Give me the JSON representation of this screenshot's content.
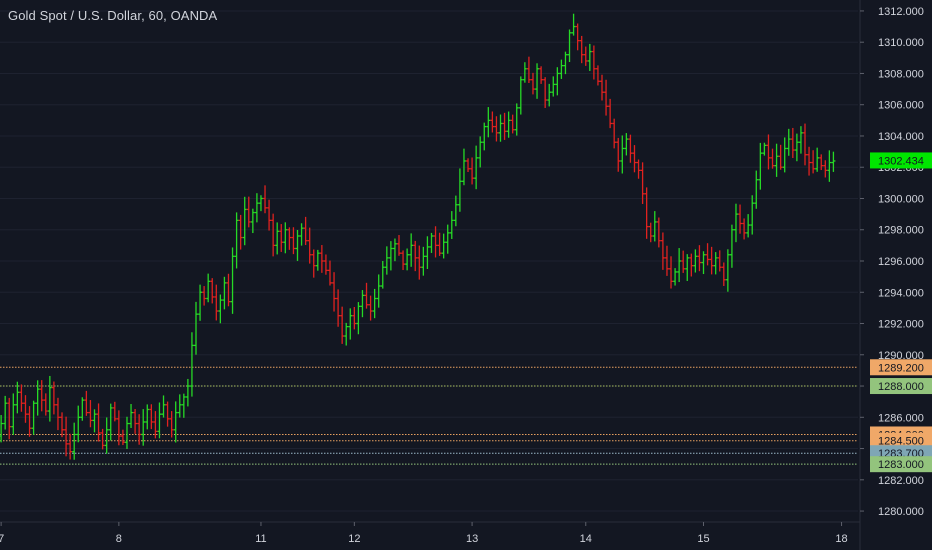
{
  "chart_data": {
    "type": "ohlc",
    "title": "Gold Spot / U.S. Dollar, 60, OANDA",
    "ylim": [
      1279.3,
      1312.7
    ],
    "y_ticks": [
      1280,
      1282,
      1284,
      1286,
      1288,
      1290,
      1292,
      1294,
      1296,
      1298,
      1300,
      1302,
      1304,
      1306,
      1308,
      1310,
      1312
    ],
    "y_tick_labels": [
      "1280.000",
      "1282.000",
      "1284.000",
      "1286.000",
      "1288.000",
      "1290.000",
      "1292.000",
      "1294.000",
      "1296.000",
      "1298.000",
      "1300.000",
      "1302.000",
      "1304.000",
      "1306.000",
      "1308.000",
      "1310.000",
      "1312.000"
    ],
    "x_ticks": [
      {
        "label": "7",
        "bar": 2
      },
      {
        "label": "8",
        "bar": 31
      },
      {
        "label": "11",
        "bar": 66
      },
      {
        "label": "12",
        "bar": 89
      },
      {
        "label": "13",
        "bar": 118
      },
      {
        "label": "14",
        "bar": 146
      },
      {
        "label": "15",
        "bar": 175
      },
      {
        "label": "18",
        "bar": 209
      }
    ],
    "colors": {
      "background": "#131722",
      "up": "#26d926",
      "down": "#e0221f",
      "text": "#d1d4dc",
      "grid": "#1e2230"
    },
    "last_price": {
      "value": 1302.434,
      "label": "1302.434",
      "color": "#00e600"
    },
    "levels": [
      {
        "value": 1289.2,
        "label": "1289.200",
        "line_color": "#e8a060",
        "tag_color": "#f0a868"
      },
      {
        "value": 1288.0,
        "label": "1288.000",
        "line_color": "#a8c060",
        "tag_color": "#93c47d"
      },
      {
        "value": 1284.9,
        "label": "1284.900",
        "line_color": "#e8a060",
        "tag_color": "#f0a868"
      },
      {
        "value": 1284.5,
        "label": "1284.500",
        "line_color": "#e8a060",
        "tag_color": "#f0a868"
      },
      {
        "value": 1283.7,
        "label": "1283.700",
        "line_color": "#9ab8c8",
        "tag_color": "#7fa6b5"
      },
      {
        "value": 1283.0,
        "label": "1283.000",
        "line_color": "#93c47d",
        "tag_color": "#93c47d"
      }
    ],
    "closes": [
      1286.2,
      1284.8,
      1285.6,
      1286.9,
      1285.4,
      1286.8,
      1287.6,
      1286.9,
      1286.2,
      1285.3,
      1286.9,
      1287.8,
      1287.1,
      1286.4,
      1287.9,
      1286.8,
      1286.0,
      1285.2,
      1284.3,
      1283.8,
      1284.9,
      1286.0,
      1287.1,
      1286.3,
      1285.8,
      1286.2,
      1285.0,
      1284.2,
      1285.2,
      1286.6,
      1285.9,
      1284.8,
      1284.4,
      1285.6,
      1286.3,
      1285.6,
      1284.9,
      1285.7,
      1286.5,
      1285.7,
      1285.1,
      1286.2,
      1286.8,
      1285.9,
      1285.2,
      1286.3,
      1286.8,
      1287.3,
      1288.0,
      1290.6,
      1292.6,
      1294.0,
      1293.6,
      1294.7,
      1293.7,
      1292.8,
      1293.5,
      1294.6,
      1293.4,
      1296.3,
      1298.6,
      1297.5,
      1299.3,
      1298.5,
      1299.1,
      1299.7,
      1300.0,
      1299.4,
      1298.6,
      1297.0,
      1297.9,
      1297.2,
      1298.0,
      1297.5,
      1296.8,
      1297.6,
      1298.1,
      1297.3,
      1296.4,
      1295.7,
      1296.5,
      1296.0,
      1295.4,
      1294.6,
      1293.6,
      1292.5,
      1291.2,
      1291.8,
      1292.5,
      1292.0,
      1293.1,
      1293.8,
      1293.2,
      1292.8,
      1293.6,
      1294.4,
      1295.6,
      1296.2,
      1296.8,
      1297.1,
      1296.5,
      1295.8,
      1296.4,
      1297.0,
      1296.2,
      1295.6,
      1296.3,
      1296.9,
      1297.6,
      1297.0,
      1296.5,
      1297.2,
      1297.8,
      1298.6,
      1299.6,
      1301.1,
      1302.4,
      1301.9,
      1301.3,
      1302.6,
      1303.6,
      1304.6,
      1305.0,
      1304.6,
      1304.2,
      1304.8,
      1304.3,
      1305.0,
      1304.4,
      1305.8,
      1307.6,
      1308.3,
      1307.6,
      1307.0,
      1308.3,
      1307.6,
      1306.3,
      1306.8,
      1307.3,
      1308.0,
      1308.5,
      1309.2,
      1310.6,
      1311.0,
      1310.1,
      1309.2,
      1308.8,
      1309.4,
      1308.3,
      1307.5,
      1306.8,
      1305.9,
      1304.8,
      1303.6,
      1302.4,
      1303.2,
      1303.8,
      1302.9,
      1302.3,
      1301.8,
      1300.3,
      1298.2,
      1297.6,
      1298.5,
      1297.3,
      1296.2,
      1295.5,
      1294.7,
      1295.3,
      1296.0,
      1295.5,
      1296.2,
      1295.7,
      1296.3,
      1295.9,
      1296.4,
      1296.1,
      1295.7,
      1296.2,
      1295.6,
      1294.8,
      1296.4,
      1298.0,
      1299.0,
      1298.4,
      1297.8,
      1298.3,
      1299.7,
      1301.2,
      1302.9,
      1303.4,
      1302.6,
      1302.1,
      1302.7,
      1302.0,
      1303.2,
      1303.8,
      1303.1,
      1303.6,
      1304.2,
      1302.8,
      1302.3,
      1301.9,
      1302.6,
      1302.1,
      1301.8,
      1302.3,
      1302.4
    ]
  }
}
